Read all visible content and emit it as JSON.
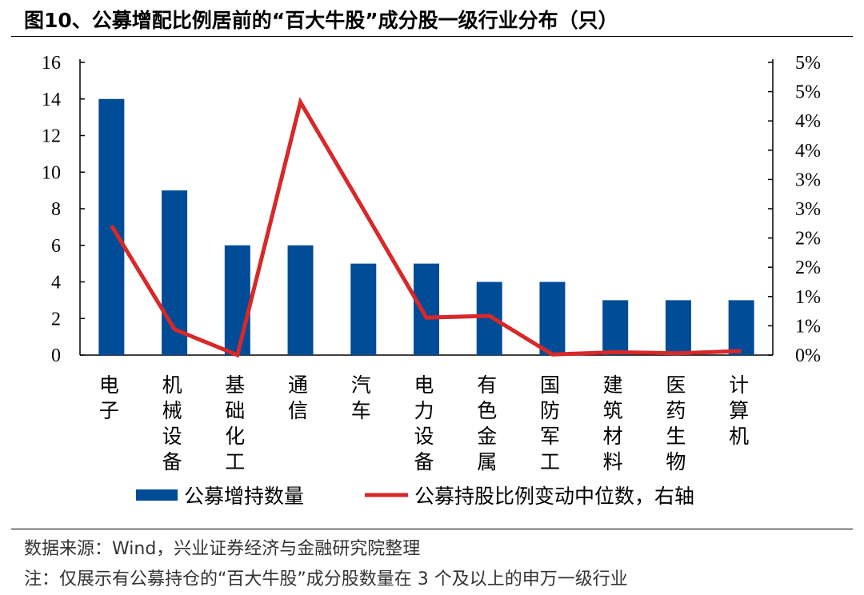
{
  "title": "图10、公募增配比例居前的“百大牛股”成分股一级行业分布（只）",
  "source": "数据来源：Wind，兴业证券经济与金融研究院整理",
  "note": "注：仅展示有公募持仓的“百大牛股”成分股数量在 3 个及以上的申万一级行业",
  "chart_data": {
    "type": "bar+line",
    "categories": [
      "电子",
      "机械设备",
      "基础化工",
      "通信",
      "汽车",
      "电力设备",
      "有色金属",
      "国防军工",
      "建筑材料",
      "医药生物",
      "计算机"
    ],
    "series": [
      {
        "name": "公募增持数量",
        "type": "bar",
        "axis": "left",
        "color": "#004C97",
        "values": [
          14,
          9,
          6,
          6,
          5,
          5,
          4,
          4,
          3,
          3,
          3
        ]
      },
      {
        "name": "公募持股比例变动中位数，右轴",
        "type": "line",
        "axis": "right",
        "color": "#D7282A",
        "values": [
          2.21,
          0.44,
          0.0,
          4.32,
          2.49,
          0.64,
          0.67,
          0.01,
          0.05,
          0.03,
          0.07
        ]
      }
    ],
    "left_axis": {
      "ylim": [
        0,
        16
      ],
      "ticks": [
        "0",
        "2",
        "4",
        "6",
        "8",
        "10",
        "12",
        "14",
        "16"
      ]
    },
    "right_axis": {
      "ylim": [
        0,
        5
      ],
      "unit": "%",
      "ticks": [
        "0%",
        "1%",
        "1%",
        "2%",
        "2%",
        "3%",
        "3%",
        "4%",
        "4%",
        "5%",
        "5%"
      ]
    },
    "legend_position": "bottom",
    "grid": false
  }
}
